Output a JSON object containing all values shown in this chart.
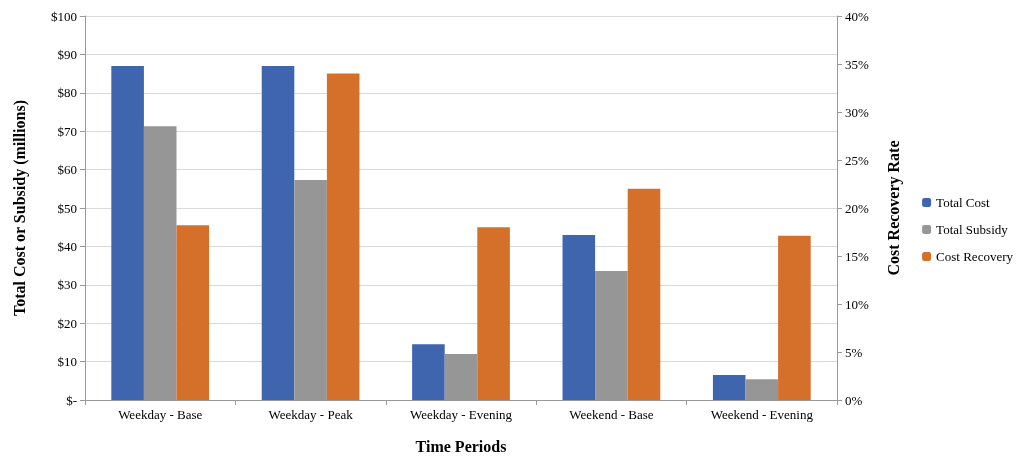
{
  "chart_data": {
    "type": "bar",
    "xlabel": "Time Periods",
    "ylabel": "Total Cost or Subsidy (millions)",
    "y2label": "Cost Recovery Rate",
    "categories": [
      "Weekday - Base",
      "Weekday - Peak",
      "Weekday - Evening",
      "Weekend - Base",
      "Weekend - Evening"
    ],
    "series": [
      {
        "name": "Total Cost",
        "color": "#3f65af",
        "values": [
          87,
          87,
          14.5,
          43,
          6.5
        ]
      },
      {
        "name": "Total Subsidy",
        "color": "#969696",
        "values": [
          71.3,
          57.3,
          12,
          33.6,
          5.4
        ]
      },
      {
        "name": "Cost Recovery",
        "color": "#d5702b",
        "axis": "y2",
        "values": [
          18.2,
          34,
          18,
          22,
          17.1
        ]
      }
    ],
    "ylim": [
      0,
      100
    ],
    "yticks": [
      {
        "value": 0,
        "label": "$-"
      },
      {
        "value": 10,
        "label": "$10"
      },
      {
        "value": 20,
        "label": "$20"
      },
      {
        "value": 30,
        "label": "$30"
      },
      {
        "value": 40,
        "label": "$40"
      },
      {
        "value": 50,
        "label": "$50"
      },
      {
        "value": 60,
        "label": "$60"
      },
      {
        "value": 70,
        "label": "$70"
      },
      {
        "value": 80,
        "label": "$80"
      },
      {
        "value": 90,
        "label": "$90"
      },
      {
        "value": 100,
        "label": "$100"
      }
    ],
    "y2lim": [
      0,
      40
    ],
    "y2ticks": [
      {
        "value": 0,
        "label": "0%"
      },
      {
        "value": 5,
        "label": "5%"
      },
      {
        "value": 10,
        "label": "10%"
      },
      {
        "value": 15,
        "label": "15%"
      },
      {
        "value": 20,
        "label": "20%"
      },
      {
        "value": 25,
        "label": "25%"
      },
      {
        "value": 30,
        "label": "30%"
      },
      {
        "value": 35,
        "label": "35%"
      },
      {
        "value": 40,
        "label": "40%"
      }
    ],
    "grid": "y",
    "legend": "right"
  }
}
